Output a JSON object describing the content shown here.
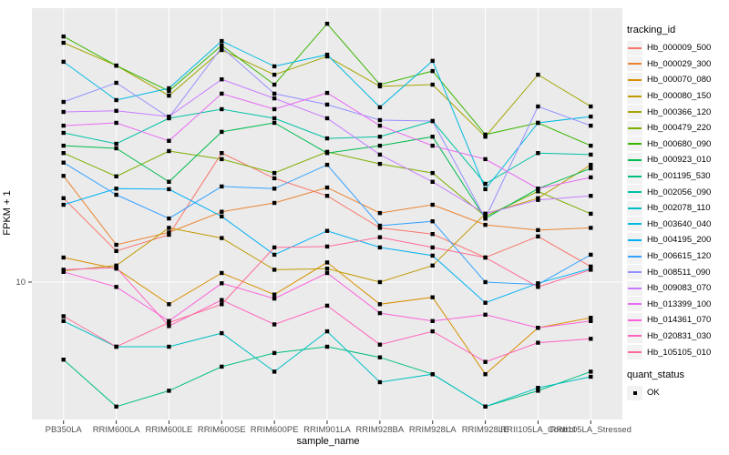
{
  "chart_data": {
    "type": "line",
    "xlabel": "sample_name",
    "ylabel": "FPKM + 1",
    "y_scale": "log10",
    "y_ticks": [
      {
        "value": 10,
        "label": "10"
      }
    ],
    "ylim": [
      3.1,
      100
    ],
    "grid": "white-on-gray-panel",
    "legend_position": "right",
    "panel_bg": "#EBEBEB",
    "grid_color": "#FFFFFF",
    "point_color": "#000000",
    "axis_text_color": "#4D4D4D",
    "categories": [
      "PB350LA",
      "RRIM600LA",
      "RRIM600LE",
      "RRIM600SE",
      "RRIM600PE",
      "RRIM901LA",
      "RRIM928BA",
      "RRIM928LA",
      "RRIM928LE",
      "RRII105LA_Control",
      "RRII105LA_Stressed"
    ],
    "series": [
      {
        "name": "Hb_000009_500",
        "color": "#F8766D",
        "values": [
          20.3,
          13.0,
          14.9,
          29.7,
          24.0,
          20.7,
          15.8,
          15.0,
          12.3,
          14.7,
          11.4
        ]
      },
      {
        "name": "Hb_000029_300",
        "color": "#EA8331",
        "values": [
          24.5,
          13.7,
          15.2,
          18.1,
          19.5,
          22.2,
          17.9,
          19.2,
          16.2,
          15.5,
          15.8
        ]
      },
      {
        "name": "Hb_000070_080",
        "color": "#D89000",
        "values": [
          12.3,
          11.2,
          8.3,
          10.8,
          9.0,
          11.8,
          8.3,
          8.8,
          4.6,
          6.8,
          7.4
        ]
      },
      {
        "name": "Hb_000080_150",
        "color": "#C09B00",
        "values": [
          11.0,
          11.5,
          15.8,
          14.5,
          11.1,
          11.2,
          10.0,
          11.5,
          17.8,
          20.3,
          26.9
        ]
      },
      {
        "name": "Hb_000366_120",
        "color": "#A3A500",
        "values": [
          75.3,
          62.1,
          48.2,
          70.8,
          57.5,
          67.1,
          52.1,
          52.9,
          34.1,
          57.5,
          44.0
        ]
      },
      {
        "name": "Hb_000479_220",
        "color": "#7CAE00",
        "values": [
          29.7,
          24.4,
          30.2,
          28.2,
          25.1,
          30.0,
          27.1,
          25.1,
          17.4,
          21.5,
          17.8
        ]
      },
      {
        "name": "Hb_000680_090",
        "color": "#39B600",
        "values": [
          79.4,
          62.1,
          50.1,
          73.6,
          52.9,
          88.4,
          52.9,
          59.3,
          34.7,
          38.3,
          31.6
        ]
      },
      {
        "name": "Hb_000923_010",
        "color": "#00BB4E",
        "values": [
          31.6,
          30.9,
          23.3,
          35.5,
          38.3,
          29.7,
          31.6,
          34.1,
          17.1,
          22.0,
          26.1
        ]
      },
      {
        "name": "Hb_001195_530",
        "color": "#00BF7D",
        "values": [
          5.2,
          3.5,
          4.0,
          4.9,
          5.5,
          5.8,
          5.3,
          4.6,
          3.5,
          4.0,
          4.7
        ]
      },
      {
        "name": "Hb_002056_090",
        "color": "#00C1A3",
        "values": [
          35.2,
          32.1,
          39.8,
          43.0,
          39.8,
          33.6,
          34.1,
          38.9,
          22.9,
          29.7,
          29.3
        ]
      },
      {
        "name": "Hb_002078_110",
        "color": "#00BFC4",
        "values": [
          7.2,
          5.8,
          5.8,
          6.5,
          4.7,
          6.6,
          4.3,
          4.6,
          3.5,
          4.1,
          4.5
        ]
      },
      {
        "name": "Hb_003640_040",
        "color": "#00BAE0",
        "values": [
          64.1,
          46.4,
          51.3,
          76.4,
          61.7,
          68.1,
          43.7,
          64.6,
          21.9,
          38.3,
          40.4
        ]
      },
      {
        "name": "Hb_004195_200",
        "color": "#00B0F6",
        "values": [
          19.2,
          22.0,
          21.9,
          17.4,
          12.6,
          15.4,
          13.4,
          12.5,
          8.4,
          9.9,
          11.2
        ]
      },
      {
        "name": "Hb_006615_120",
        "color": "#35A2FF",
        "values": [
          27.4,
          20.9,
          17.1,
          22.4,
          22.0,
          26.9,
          16.1,
          16.7,
          10.0,
          9.8,
          12.6
        ]
      },
      {
        "name": "Hb_008511_090",
        "color": "#9590FF",
        "values": [
          45.7,
          53.7,
          40.1,
          72.4,
          49.0,
          44.7,
          39.2,
          38.9,
          17.1,
          44.0,
          37.4
        ]
      },
      {
        "name": "Hb_009083_070",
        "color": "#C77CFF",
        "values": [
          42.0,
          42.4,
          40.4,
          55.3,
          47.1,
          39.8,
          29.3,
          23.3,
          17.8,
          20.0,
          20.7
        ]
      },
      {
        "name": "Hb_013399_100",
        "color": "#E76BF3",
        "values": [
          37.4,
          38.3,
          32.9,
          49.0,
          43.0,
          49.3,
          37.4,
          31.6,
          28.2,
          22.0,
          24.2
        ]
      },
      {
        "name": "Hb_014361_070",
        "color": "#FA62DB",
        "values": [
          10.9,
          9.6,
          7.2,
          9.9,
          8.7,
          10.8,
          7.7,
          7.2,
          7.6,
          6.8,
          7.2
        ]
      },
      {
        "name": "Hb_020831_030",
        "color": "#FF62BC",
        "values": [
          11.1,
          11.3,
          6.9,
          8.6,
          7.0,
          8.2,
          5.9,
          6.6,
          5.1,
          6.0,
          6.2
        ]
      },
      {
        "name": "Hb_105105_010",
        "color": "#FF6A98",
        "values": [
          7.5,
          5.8,
          7.1,
          8.3,
          13.4,
          13.5,
          14.6,
          13.4,
          12.3,
          9.6,
          11.1
        ]
      }
    ],
    "legend": {
      "tracking_title": "tracking_id",
      "quant_title": "quant_status",
      "quant_value": "OK"
    }
  }
}
